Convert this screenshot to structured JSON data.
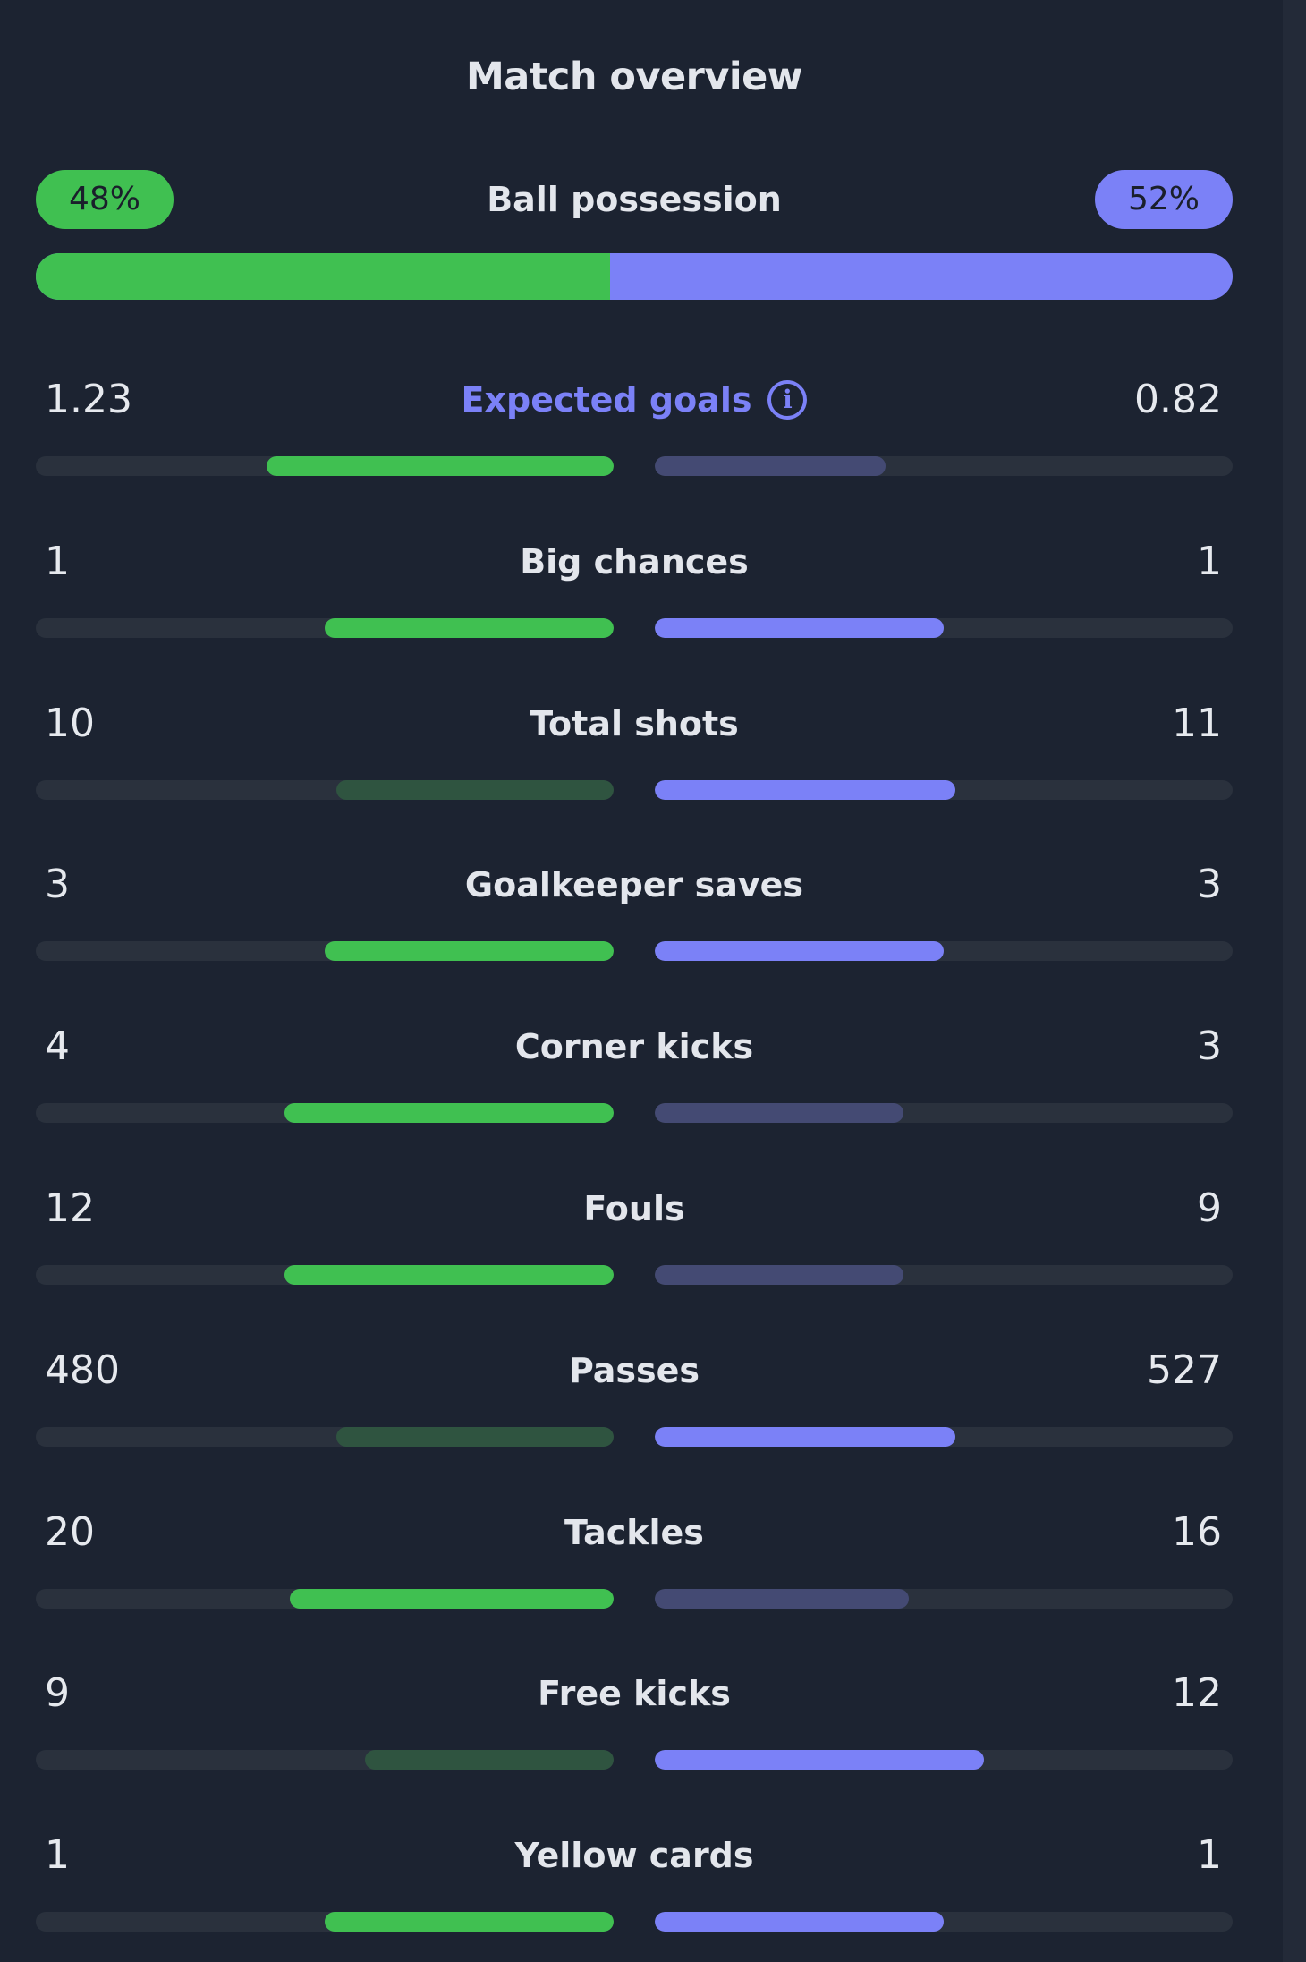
{
  "title": "Match overview",
  "colors": {
    "home": "#40c051",
    "home_muted": "#2f5440",
    "away": "#7b81f7",
    "away_muted": "#444a73",
    "track": "#2a313d",
    "background": "#1c2331"
  },
  "possession": {
    "label": "Ball possession",
    "home": "48%",
    "away": "52%",
    "home_fraction": 0.48
  },
  "stats": [
    {
      "label": "Expected goals",
      "home": "1.23",
      "away": "0.82",
      "home_fill": 0.6,
      "away_fill": 0.4,
      "info_icon": true
    },
    {
      "label": "Big chances",
      "home": "1",
      "away": "1",
      "home_fill": 0.5,
      "away_fill": 0.5
    },
    {
      "label": "Total shots",
      "home": "10",
      "away": "11",
      "home_fill": 0.48,
      "away_fill": 0.52
    },
    {
      "label": "Goalkeeper saves",
      "home": "3",
      "away": "3",
      "home_fill": 0.5,
      "away_fill": 0.5
    },
    {
      "label": "Corner kicks",
      "home": "4",
      "away": "3",
      "home_fill": 0.57,
      "away_fill": 0.43
    },
    {
      "label": "Fouls",
      "home": "12",
      "away": "9",
      "home_fill": 0.57,
      "away_fill": 0.43
    },
    {
      "label": "Passes",
      "home": "480",
      "away": "527",
      "home_fill": 0.48,
      "away_fill": 0.52
    },
    {
      "label": "Tackles",
      "home": "20",
      "away": "16",
      "home_fill": 0.56,
      "away_fill": 0.44
    },
    {
      "label": "Free kicks",
      "home": "9",
      "away": "12",
      "home_fill": 0.43,
      "away_fill": 0.57
    },
    {
      "label": "Yellow cards",
      "home": "1",
      "away": "1",
      "home_fill": 0.5,
      "away_fill": 0.5
    }
  ]
}
